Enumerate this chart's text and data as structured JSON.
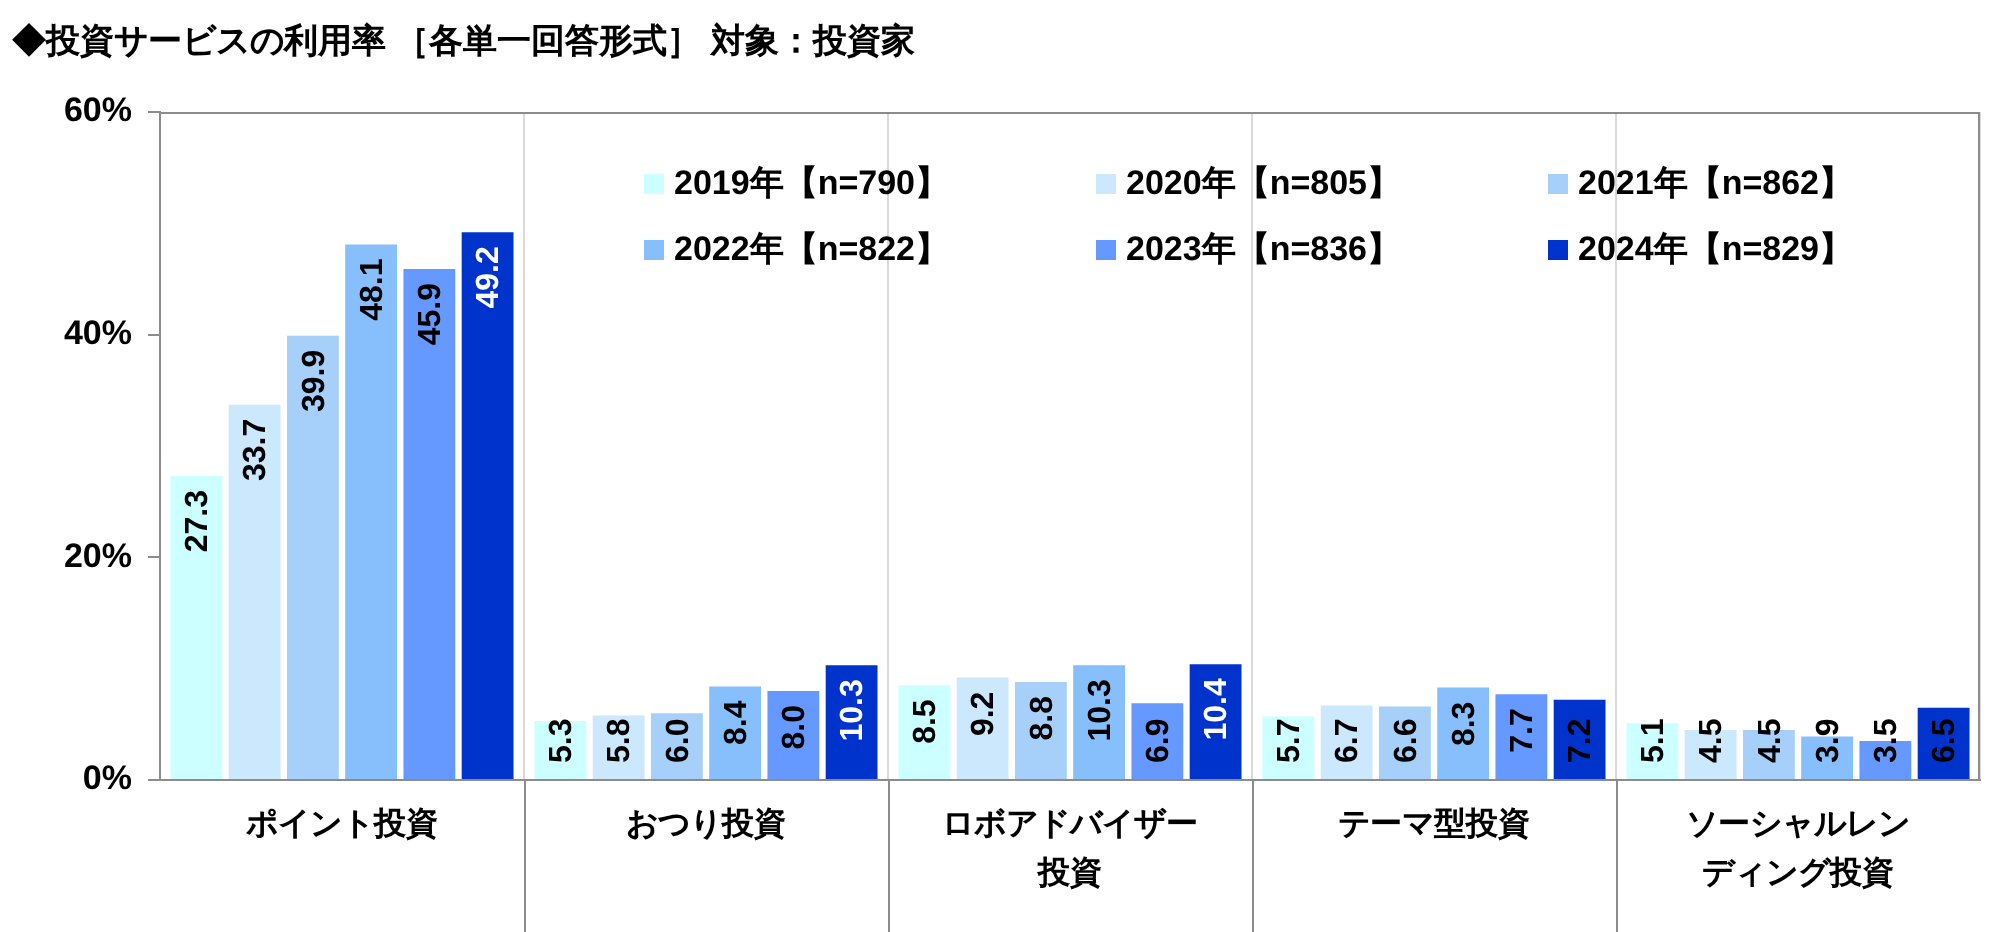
{
  "chart_data": {
    "type": "bar",
    "title": "◆投資サービスの利用率 ［各単一回答形式］ 対象：投資家",
    "categories": [
      "ポイント投資",
      "おつり投資",
      "ロボアドバイザー投資",
      "テーマ型投資",
      "ソーシャルレンディング投資"
    ],
    "series": [
      {
        "name": "2019年【n=790】",
        "color": "#ccffff",
        "values": [
          27.3,
          5.3,
          8.5,
          5.7,
          5.1
        ],
        "value_labels": [
          "27.3",
          "5.3",
          "8.5",
          "5.7",
          "5.1"
        ]
      },
      {
        "name": "2020年【n=805】",
        "color": "#cce8fc",
        "values": [
          33.7,
          5.8,
          9.2,
          6.7,
          4.5
        ],
        "value_labels": [
          "33.7",
          "5.8",
          "9.2",
          "6.7",
          "4.5"
        ]
      },
      {
        "name": "2021年【n=862】",
        "color": "#a6d0fa",
        "values": [
          39.9,
          6.0,
          8.8,
          6.6,
          4.5
        ],
        "value_labels": [
          "39.9",
          "6.0",
          "8.8",
          "6.6",
          "4.5"
        ]
      },
      {
        "name": "2022年【n=822】",
        "color": "#87befc",
        "values": [
          48.1,
          8.4,
          10.3,
          8.3,
          3.9
        ],
        "value_labels": [
          "48.1",
          "8.4",
          "10.3",
          "8.3",
          "3.9"
        ]
      },
      {
        "name": "2023年【n=836】",
        "color": "#6699ff",
        "values": [
          45.9,
          8.0,
          6.9,
          7.7,
          3.5
        ],
        "value_labels": [
          "45.9",
          "8.0",
          "6.9",
          "7.7",
          "3.5"
        ]
      },
      {
        "name": "2024年【n=829】",
        "color": "#0033cc",
        "values": [
          49.2,
          10.3,
          10.4,
          7.2,
          6.5
        ],
        "value_labels": [
          "49.2",
          "10.3",
          "10.4",
          "7.2",
          "6.5"
        ]
      }
    ],
    "ylim": [
      0,
      60
    ],
    "yticks": [
      {
        "value": 0,
        "label": "0%"
      },
      {
        "value": 20,
        "label": "20%"
      },
      {
        "value": 40,
        "label": "40%"
      },
      {
        "value": 60,
        "label": "60%"
      }
    ],
    "grid": "x",
    "legend": "top right"
  }
}
